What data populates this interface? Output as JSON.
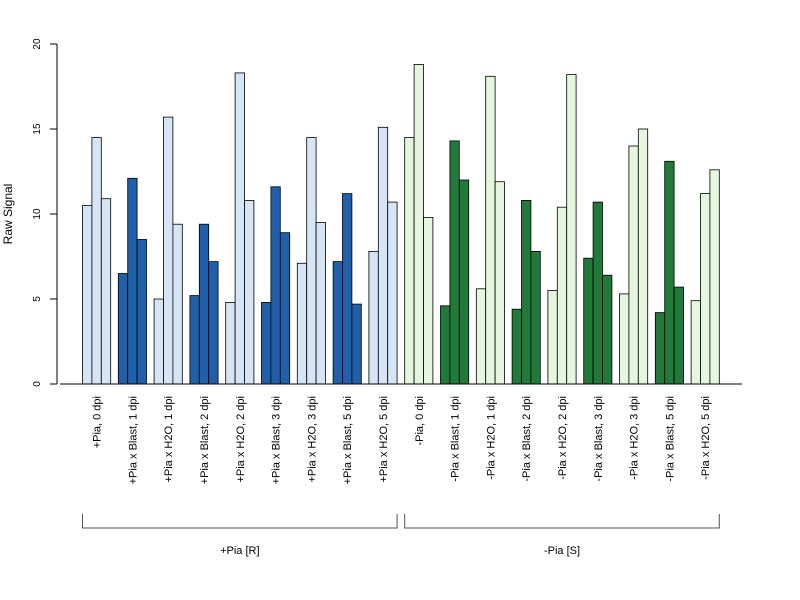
{
  "chart_data": {
    "type": "bar",
    "title": "",
    "xlabel": "",
    "ylabel": "Raw Signal",
    "ylim": [
      0,
      20
    ],
    "yticks": [
      "0",
      "5",
      "10",
      "15",
      "20"
    ],
    "grid": false,
    "legend": "none",
    "categories": [
      "+Pia, 0 dpi",
      "+Pia x Blast, 1 dpi",
      "+Pia x H2O, 1 dpi",
      "+Pia x Blast, 2 dpi",
      "+Pia x H2O, 2 dpi",
      "+Pia x Blast, 3 dpi",
      "+Pia x H2O, 3 dpi",
      "+Pia x Blast, 5 dpi",
      "+Pia x H2O, 5 dpi",
      "-Pia, 0 dpi",
      "-Pia x Blast, 1 dpi",
      "-Pia x H2O, 1 dpi",
      "-Pia x Blast, 2 dpi",
      "-Pia x H2O, 2 dpi",
      "-Pia x Blast, 3 dpi",
      "-Pia x H2O, 3 dpi",
      "-Pia x Blast, 5 dpi",
      "-Pia x H2O, 5 dpi"
    ],
    "values": [
      [
        10.5,
        14.5,
        10.9
      ],
      [
        6.5,
        12.1,
        8.5
      ],
      [
        5.0,
        15.7,
        9.4
      ],
      [
        5.2,
        9.4,
        7.2
      ],
      [
        4.8,
        18.3,
        10.8
      ],
      [
        4.8,
        11.6,
        8.9
      ],
      [
        7.1,
        14.5,
        9.5
      ],
      [
        7.2,
        11.2,
        4.7
      ],
      [
        7.8,
        15.1,
        10.7
      ],
      [
        14.5,
        18.8,
        9.8
      ],
      [
        4.6,
        14.3,
        12.0
      ],
      [
        5.6,
        18.1,
        11.9
      ],
      [
        4.4,
        10.8,
        7.8
      ],
      [
        5.5,
        10.4,
        18.2
      ],
      [
        7.4,
        10.7,
        6.4
      ],
      [
        5.3,
        14.0,
        15.0
      ],
      [
        4.2,
        13.1,
        5.7
      ],
      [
        4.9,
        11.2,
        12.6
      ]
    ],
    "bar_colors": [
      "#d6e5f5",
      "#2060ab",
      "#d6e5f5",
      "#2060ab",
      "#d6e5f5",
      "#2060ab",
      "#d6e5f5",
      "#2060ab",
      "#d6e5f5",
      "#e6f5de",
      "#217a39",
      "#e6f5de",
      "#217a39",
      "#e6f5de",
      "#217a39",
      "#e6f5de",
      "#217a39",
      "#e6f5de"
    ],
    "groups": [
      {
        "label": "+Pia [R]",
        "first": 0,
        "last": 8
      },
      {
        "label": "-Pia [S]",
        "first": 9,
        "last": 17
      }
    ]
  }
}
